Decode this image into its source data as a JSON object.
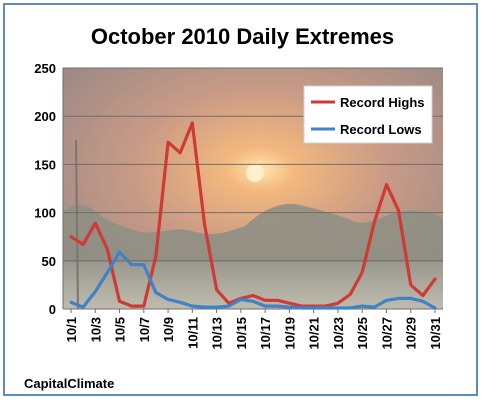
{
  "chart_data": {
    "type": "line",
    "title": "October 2010 Daily Extremes",
    "credit": "CapitalClimate",
    "ylim": [
      0,
      250
    ],
    "yticks": [
      0,
      50,
      100,
      150,
      200,
      250
    ],
    "grid": true,
    "legend_position": "top-right",
    "categories": [
      "10/1",
      "10/2",
      "10/3",
      "10/4",
      "10/5",
      "10/6",
      "10/7",
      "10/8",
      "10/9",
      "10/10",
      "10/11",
      "10/12",
      "10/13",
      "10/14",
      "10/15",
      "10/16",
      "10/17",
      "10/18",
      "10/19",
      "10/20",
      "10/21",
      "10/22",
      "10/23",
      "10/24",
      "10/25",
      "10/26",
      "10/27",
      "10/28",
      "10/29",
      "10/30",
      "10/31"
    ],
    "xtick_labels": [
      "10/1",
      "10/3",
      "10/5",
      "10/7",
      "10/9",
      "10/11",
      "10/13",
      "10/15",
      "10/17",
      "10/19",
      "10/21",
      "10/23",
      "10/25",
      "10/27",
      "10/29",
      "10/31"
    ],
    "series": [
      {
        "name": "Record Highs",
        "color": "#cf3a34",
        "values": [
          75,
          67,
          89,
          62,
          8,
          3,
          3,
          55,
          173,
          162,
          193,
          88,
          20,
          6,
          11,
          14,
          9,
          9,
          6,
          3,
          3,
          3,
          6,
          15,
          38,
          90,
          129,
          102,
          25,
          14,
          31
        ]
      },
      {
        "name": "Record Lows",
        "color": "#3f82c8",
        "values": [
          7,
          2,
          18,
          38,
          59,
          46,
          46,
          17,
          10,
          7,
          3,
          2,
          2,
          3,
          10,
          8,
          3,
          3,
          2,
          1,
          1,
          1,
          1,
          1,
          3,
          2,
          9,
          11,
          11,
          8,
          1
        ]
      }
    ]
  }
}
